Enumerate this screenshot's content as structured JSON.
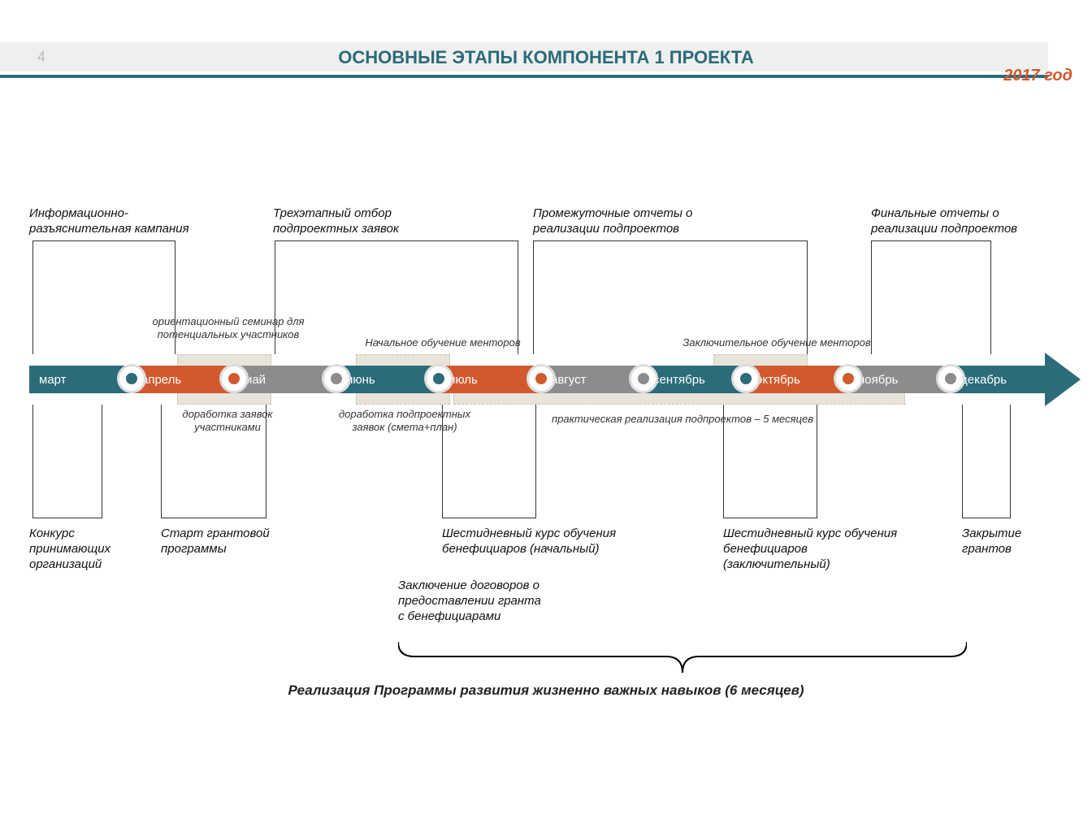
{
  "page_number": "4",
  "title": "ОСНОВНЫЕ ЭТАПЫ КОМПОНЕНТА 1 ПРОЕКТА",
  "year": "2017 год",
  "colors": {
    "teal": "#2b6b7a",
    "orange": "#d05a2e",
    "gray": "#8c8c8c",
    "band": "#e8e4d9",
    "header_bar": "#efefef"
  },
  "months": [
    {
      "name": "март",
      "fill": "#2b6b7a",
      "dot_inner": "#2b6b7a"
    },
    {
      "name": "апрель",
      "fill": "#d05a2e",
      "dot_inner": "#d05a2e"
    },
    {
      "name": "май",
      "fill": "#8c8c8c",
      "dot_inner": "#8c8c8c"
    },
    {
      "name": "июнь",
      "fill": "#2b6b7a",
      "dot_inner": "#2b6b7a"
    },
    {
      "name": "июль",
      "fill": "#d05a2e",
      "dot_inner": "#d05a2e"
    },
    {
      "name": "август",
      "fill": "#8c8c8c",
      "dot_inner": "#8c8c8c"
    },
    {
      "name": "сентябрь",
      "fill": "#2b6b7a",
      "dot_inner": "#2b6b7a"
    },
    {
      "name": "октябрь",
      "fill": "#d05a2e",
      "dot_inner": "#d05a2e"
    },
    {
      "name": "ноябрь",
      "fill": "#8c8c8c",
      "dot_inner": "#8c8c8c"
    },
    {
      "name": "декабрь",
      "fill": "#2b6b7a",
      "dot_inner": ""
    }
  ],
  "top_labels": {
    "campaign": "Информационно-\nразъяснительная кампания",
    "selection": "Трехэтапный отбор\nподпроектных заявок",
    "interim_reports": "Промежуточные отчеты о\nреализации подпроектов",
    "final_reports": "Финальные отчеты о\nреализации подпроектов"
  },
  "near_top_labels": {
    "seminar": "ориентационный семинар для\nпотенциальных участников",
    "mentor_initial": "Начальное обучение менторов",
    "mentor_final": "Заключительное обучение менторов"
  },
  "near_bot_labels": {
    "rework_apps": "доработка заявок\nучастниками",
    "rework_subproject": "доработка подпроектных\nзаявок (смета+план)",
    "implementation": "практическая реализация подпроектов – 5 месяцев"
  },
  "bot_labels": {
    "contest": "Конкурс\nпринимающих\nорганизаций",
    "start_grant": "Старт грантовой\nпрограммы",
    "six_day_initial": "Шестидневный курс обучения\nбенефициаров (начальный)",
    "six_day_final": "Шестидневный курс обучения\nбенефициаров\n(заключительный)",
    "close_grants": "Закрытие\nгрантов",
    "contracts": "Заключение договоров о\nпредоставлении гранта\nс бенефициарами"
  },
  "brace_label": "Реализация Программы развития жизненно важных навыков (6 месяцев)"
}
